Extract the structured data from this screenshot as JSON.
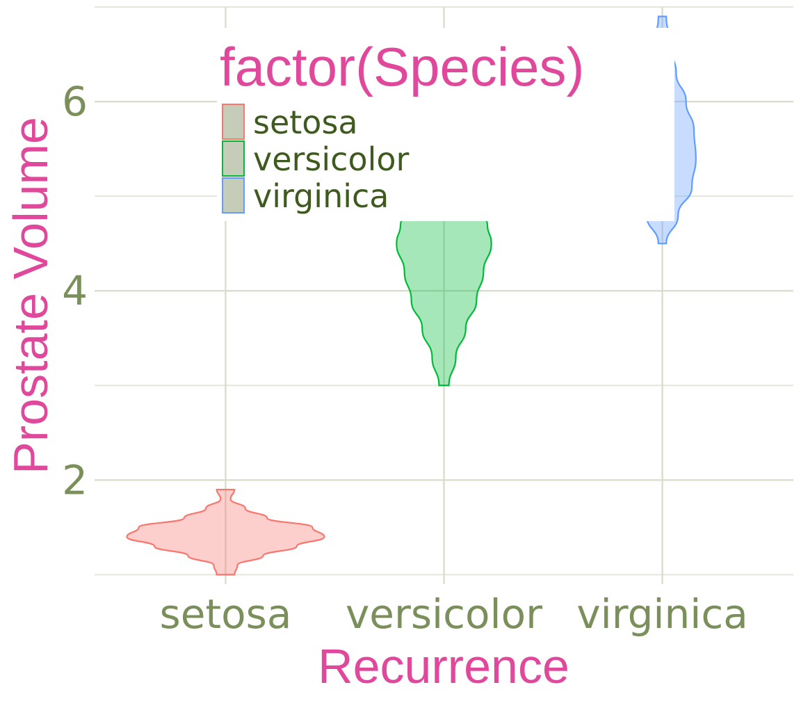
{
  "chart_data": {
    "type": "violin",
    "categories": [
      "setosa",
      "versicolor",
      "virginica"
    ],
    "xlabel": "Recurrence",
    "ylabel": "Prostate Volume",
    "ylim": [
      0.9,
      7.0
    ],
    "yticks": [
      2,
      4,
      6
    ],
    "yticklabels": [
      "2",
      "4",
      "6"
    ],
    "grid": true,
    "legend": {
      "title": "factor(Species)",
      "placement": "top-center",
      "entries": [
        "setosa",
        "versicolor",
        "virginica"
      ]
    },
    "colors": {
      "setosa": "#f8766d",
      "versicolor": "#00ba38",
      "virginica": "#619cff",
      "legend_key_fill": "#c5ccb8",
      "grid": "#d8ddcc",
      "tick_text": "#7a8f5a",
      "title_text": "#e0489b",
      "legend_text": "#3f5a1e"
    },
    "series": [
      {
        "category": "setosa",
        "min": 1.0,
        "max": 1.9,
        "density": [
          [
            1.0,
            0.09
          ],
          [
            1.1,
            0.12
          ],
          [
            1.2,
            0.38
          ],
          [
            1.3,
            0.72
          ],
          [
            1.4,
            1.0
          ],
          [
            1.5,
            0.88
          ],
          [
            1.6,
            0.42
          ],
          [
            1.7,
            0.2
          ],
          [
            1.8,
            0.05
          ],
          [
            1.9,
            0.09
          ]
        ]
      },
      {
        "category": "versicolor",
        "min": 3.0,
        "max": 5.1,
        "density": [
          [
            3.0,
            0.05
          ],
          [
            3.3,
            0.12
          ],
          [
            3.6,
            0.22
          ],
          [
            3.9,
            0.33
          ],
          [
            4.2,
            0.4
          ],
          [
            4.5,
            0.48
          ],
          [
            4.7,
            0.44
          ],
          [
            4.9,
            0.28
          ],
          [
            5.1,
            0.08
          ]
        ]
      },
      {
        "category": "virginica",
        "min": 4.5,
        "max": 6.9,
        "density": [
          [
            4.5,
            0.04
          ],
          [
            4.8,
            0.16
          ],
          [
            5.1,
            0.3
          ],
          [
            5.4,
            0.34
          ],
          [
            5.7,
            0.32
          ],
          [
            6.0,
            0.24
          ],
          [
            6.3,
            0.14
          ],
          [
            6.6,
            0.08
          ],
          [
            6.9,
            0.04
          ]
        ]
      }
    ]
  }
}
